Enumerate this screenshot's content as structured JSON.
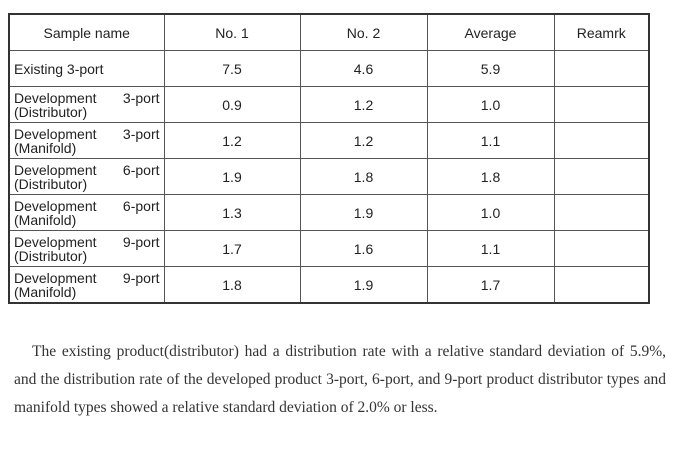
{
  "table": {
    "header": [
      "Sample name",
      "No. 1",
      "No. 2",
      "Average",
      "Reamrk"
    ],
    "rows": [
      [
        [
          "Existing 3-port"
        ],
        "7.5",
        "4.6",
        "5.9"
      ],
      [
        [
          "Development 3-port",
          "(Distributor)"
        ],
        "0.9",
        "1.2",
        "1.0"
      ],
      [
        [
          "Development 3-port",
          "(Manifold)"
        ],
        "1.2",
        "1.2",
        "1.1"
      ],
      [
        [
          "Development 6-port",
          "(Distributor)"
        ],
        "1.9",
        "1.8",
        "1.8"
      ],
      [
        [
          "Development 6-port",
          "(Manifold)"
        ],
        "1.3",
        "1.9",
        "1.0"
      ],
      [
        [
          "Development 9-port",
          "(Distributor)"
        ],
        "1.7",
        "1.6",
        "1.1"
      ],
      [
        [
          "Development 9-port",
          "(Manifold)"
        ],
        "1.8",
        "1.9",
        "1.7"
      ]
    ]
  },
  "paragraph": "The existing product(distributor) had a distribution rate with a relative standard deviation of 5.9%, and the distribution rate of the developed product 3-port, 6-port, and 9-port product distributor types and manifold types showed a relative standard deviation of 2.0% or less."
}
